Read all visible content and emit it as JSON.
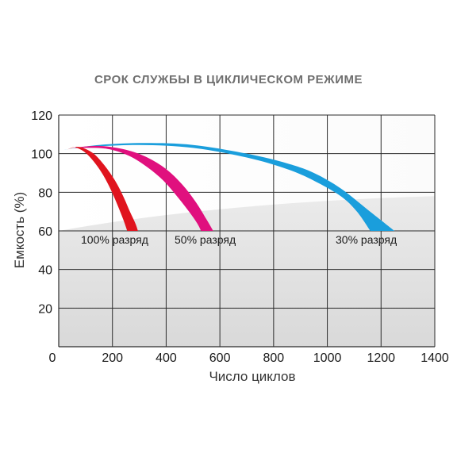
{
  "chart_data": {
    "type": "area",
    "title": "СРОК СЛУЖБЫ В ЦИКЛИЧЕСКОМ РЕЖИМЕ",
    "xlabel": "Число циклов",
    "ylabel": "Емкость (%)",
    "xlim": [
      0,
      1400
    ],
    "ylim": [
      0,
      120
    ],
    "x_ticks": [
      0,
      200,
      400,
      600,
      800,
      1000,
      1200,
      1400
    ],
    "y_ticks": [
      20,
      40,
      60,
      80,
      100,
      120
    ],
    "grid": true,
    "series": [
      {
        "name": "100% разряд",
        "color": "#e0141e",
        "outer": [
          [
            30,
            102
          ],
          [
            60,
            103.5
          ],
          [
            90,
            103
          ],
          [
            130,
            100
          ],
          [
            170,
            94
          ],
          [
            210,
            86
          ],
          [
            240,
            78
          ],
          [
            265,
            70
          ],
          [
            285,
            64
          ],
          [
            295,
            60
          ]
        ],
        "inner": [
          [
            60,
            103.5
          ],
          [
            95,
            101
          ],
          [
            130,
            96
          ],
          [
            165,
            89
          ],
          [
            195,
            81
          ],
          [
            220,
            73
          ],
          [
            240,
            66
          ],
          [
            255,
            60
          ]
        ]
      },
      {
        "name": "50% разряд",
        "color": "#e0107e",
        "outer": [
          [
            50,
            103
          ],
          [
            150,
            104
          ],
          [
            250,
            102
          ],
          [
            330,
            98
          ],
          [
            400,
            92
          ],
          [
            460,
            84
          ],
          [
            510,
            75
          ],
          [
            550,
            66
          ],
          [
            575,
            60
          ]
        ],
        "inner": [
          [
            90,
            103
          ],
          [
            180,
            102.5
          ],
          [
            260,
            99
          ],
          [
            330,
            93
          ],
          [
            390,
            86
          ],
          [
            440,
            78
          ],
          [
            485,
            70
          ],
          [
            515,
            64
          ],
          [
            530,
            60
          ]
        ]
      },
      {
        "name": "30% разряд",
        "color": "#1a9edc",
        "outer": [
          [
            20,
            102
          ],
          [
            150,
            104.5
          ],
          [
            320,
            105.5
          ],
          [
            500,
            104.5
          ],
          [
            700,
            100
          ],
          [
            850,
            95
          ],
          [
            950,
            90
          ],
          [
            1050,
            82
          ],
          [
            1150,
            71
          ],
          [
            1250,
            60
          ]
        ],
        "inner": [
          [
            100,
            103.5
          ],
          [
            300,
            104.5
          ],
          [
            500,
            103
          ],
          [
            700,
            98
          ],
          [
            850,
            92
          ],
          [
            950,
            86
          ],
          [
            1050,
            78
          ],
          [
            1110,
            70
          ],
          [
            1160,
            60
          ]
        ]
      }
    ]
  }
}
